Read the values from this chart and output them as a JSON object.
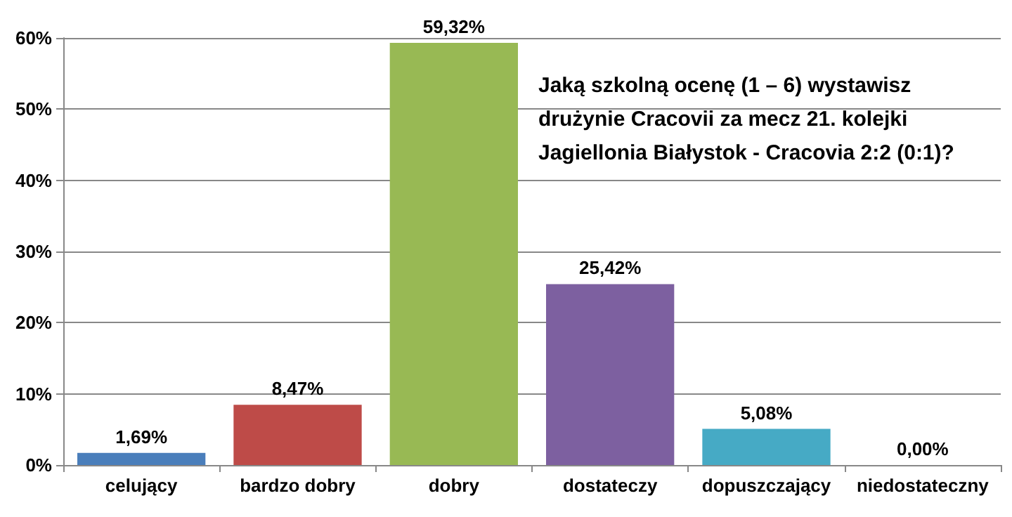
{
  "chart_data": {
    "type": "bar",
    "title": "Jaką szkolną ocenę (1 – 6) wystawisz drużynie Cracovii za mecz 21. kolejki Jagiellonia Białystok - Cracovia 2:2 (0:1)?",
    "categories": [
      "celujący",
      "bardzo dobry",
      "dobry",
      "dostateczy",
      "dopuszczający",
      "niedostateczny"
    ],
    "values": [
      1.69,
      8.47,
      59.32,
      25.42,
      5.08,
      0.0
    ],
    "colors": [
      "#4a7ebb",
      "#be4b48",
      "#98b954",
      "#7d60a0",
      "#46aac5",
      "#f79646"
    ],
    "value_labels": [
      "1,69%",
      "8,47%",
      "59,32%",
      "25,42%",
      "5,08%",
      "0,00%"
    ],
    "ylim": [
      0,
      60
    ],
    "yticks": [
      {
        "value": 0,
        "label": "0%"
      },
      {
        "value": 10,
        "label": "10%"
      },
      {
        "value": 20,
        "label": "20%"
      },
      {
        "value": 30,
        "label": "30%"
      },
      {
        "value": 40,
        "label": "40%"
      },
      {
        "value": 50,
        "label": "50%"
      },
      {
        "value": 60,
        "label": "60%"
      }
    ],
    "grid": "y"
  }
}
